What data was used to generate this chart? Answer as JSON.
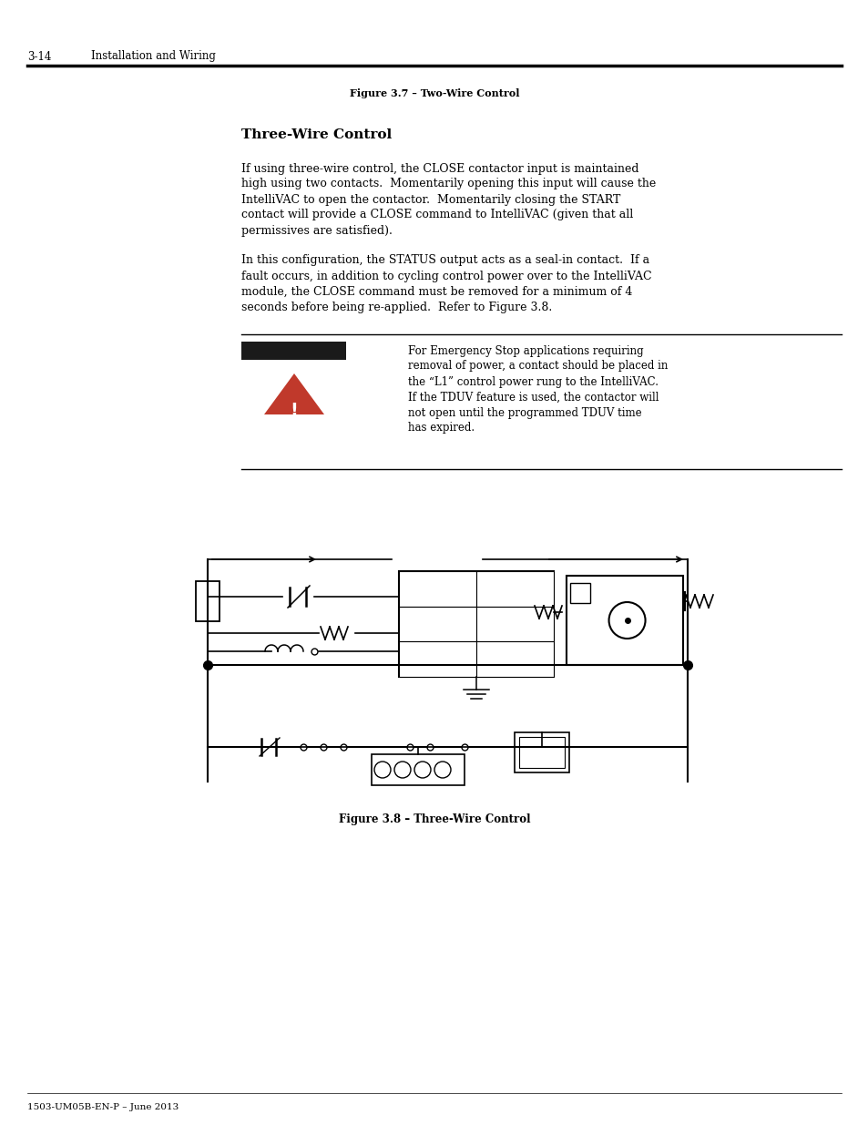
{
  "page_header_num": "3-14",
  "page_header_title": "Installation and Wiring",
  "fig37_caption": "Figure 3.7 – Two-Wire Control",
  "section_title": "Three-Wire Control",
  "para1_lines": [
    "If using three-wire control, the CLOSE contactor input is maintained",
    "high using two contacts.  Momentarily opening this input will cause the",
    "IntelliVAC to open the contactor.  Momentarily closing the START",
    "contact will provide a CLOSE command to IntelliVAC (given that all",
    "permissives are satisfied)."
  ],
  "para2_lines": [
    "In this configuration, the STATUS output acts as a seal-in contact.  If a",
    "fault occurs, in addition to cycling control power over to the IntelliVAC",
    "module, the CLOSE command must be removed for a minimum of 4",
    "seconds before being re-applied.  Refer to Figure 3.8."
  ],
  "warning_lines": [
    "For Emergency Stop applications requiring",
    "removal of power, a contact should be placed in",
    "the “L1” control power rung to the IntelliVAC.",
    "If the TDUV feature is used, the contactor will",
    "not open until the programmed TDUV time",
    "has expired."
  ],
  "fig38_caption": "Figure 3.8 – Three-Wire Control",
  "page_footer": "1503-UM05B-EN-P – June 2013",
  "bg_color": "#ffffff",
  "warn_bar_color": "#1a1a1a",
  "warn_triangle_color": "#c0392b"
}
